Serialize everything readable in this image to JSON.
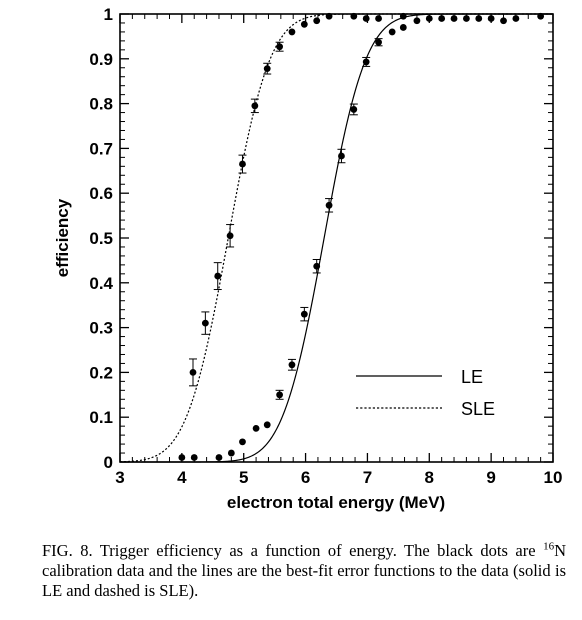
{
  "chart_data": {
    "type": "scatter",
    "xlabel": "electron total energy (MeV)",
    "ylabel": "efficiency",
    "xlim": [
      3,
      10
    ],
    "ylim": [
      0,
      1
    ],
    "x_ticks": [
      "3",
      "4",
      "5",
      "6",
      "7",
      "8",
      "9",
      "10"
    ],
    "y_ticks": [
      "0",
      "0.1",
      "0.2",
      "0.3",
      "0.4",
      "0.5",
      "0.6",
      "0.7",
      "0.8",
      "0.9",
      "1"
    ],
    "grid": false,
    "legend_position": "bottom-right",
    "series": [
      {
        "name": "LE",
        "line_style": "solid",
        "fit": {
          "type": "erf",
          "mean": 6.3,
          "sigma": 0.53
        },
        "points": [
          {
            "x": 4.0,
            "y": 0.01
          },
          {
            "x": 4.2,
            "y": 0.01
          },
          {
            "x": 4.6,
            "y": 0.01
          },
          {
            "x": 4.8,
            "y": 0.02
          },
          {
            "x": 4.98,
            "y": 0.045
          },
          {
            "x": 5.2,
            "y": 0.075
          },
          {
            "x": 5.38,
            "y": 0.083
          },
          {
            "x": 5.58,
            "y": 0.15
          },
          {
            "x": 5.78,
            "y": 0.217
          },
          {
            "x": 5.98,
            "y": 0.33
          },
          {
            "x": 6.18,
            "y": 0.437
          },
          {
            "x": 6.38,
            "y": 0.573
          },
          {
            "x": 6.58,
            "y": 0.683
          },
          {
            "x": 6.78,
            "y": 0.787
          },
          {
            "x": 6.98,
            "y": 0.893
          },
          {
            "x": 7.18,
            "y": 0.937
          },
          {
            "x": 7.4,
            "y": 0.96
          },
          {
            "x": 7.58,
            "y": 0.97
          },
          {
            "x": 7.8,
            "y": 0.985
          },
          {
            "x": 8.0,
            "y": 0.99
          },
          {
            "x": 8.2,
            "y": 0.99
          },
          {
            "x": 8.4,
            "y": 0.99
          },
          {
            "x": 8.6,
            "y": 0.99
          },
          {
            "x": 8.8,
            "y": 0.99
          },
          {
            "x": 9.0,
            "y": 0.99
          },
          {
            "x": 9.2,
            "y": 0.985
          },
          {
            "x": 9.4,
            "y": 0.99
          },
          {
            "x": 9.8,
            "y": 0.995
          }
        ]
      },
      {
        "name": "SLE",
        "line_style": "dashed",
        "fit": {
          "type": "erf",
          "mean": 4.75,
          "sigma": 0.53
        },
        "points": [
          {
            "x": 4.18,
            "y": 0.2
          },
          {
            "x": 4.38,
            "y": 0.31
          },
          {
            "x": 4.58,
            "y": 0.415
          },
          {
            "x": 4.78,
            "y": 0.505
          },
          {
            "x": 4.98,
            "y": 0.665
          },
          {
            "x": 5.18,
            "y": 0.795
          },
          {
            "x": 5.38,
            "y": 0.878
          },
          {
            "x": 5.58,
            "y": 0.927
          },
          {
            "x": 5.78,
            "y": 0.96
          },
          {
            "x": 5.98,
            "y": 0.977
          },
          {
            "x": 6.18,
            "y": 0.985
          },
          {
            "x": 6.38,
            "y": 0.995
          },
          {
            "x": 6.78,
            "y": 0.995
          },
          {
            "x": 6.98,
            "y": 0.99
          },
          {
            "x": 7.18,
            "y": 0.99
          },
          {
            "x": 7.58,
            "y": 0.995
          }
        ]
      }
    ],
    "error_bars": [
      {
        "x": 4.18,
        "y": 0.2,
        "err": 0.03
      },
      {
        "x": 4.38,
        "y": 0.31,
        "err": 0.025
      },
      {
        "x": 4.58,
        "y": 0.415,
        "err": 0.03
      },
      {
        "x": 4.78,
        "y": 0.505,
        "err": 0.025
      },
      {
        "x": 4.98,
        "y": 0.665,
        "err": 0.02
      },
      {
        "x": 5.18,
        "y": 0.795,
        "err": 0.015
      },
      {
        "x": 5.38,
        "y": 0.878,
        "err": 0.012
      },
      {
        "x": 5.58,
        "y": 0.927,
        "err": 0.01
      },
      {
        "x": 5.98,
        "y": 0.33,
        "err": 0.015
      },
      {
        "x": 6.18,
        "y": 0.437,
        "err": 0.015
      },
      {
        "x": 6.38,
        "y": 0.573,
        "err": 0.015
      },
      {
        "x": 6.58,
        "y": 0.683,
        "err": 0.015
      },
      {
        "x": 6.78,
        "y": 0.787,
        "err": 0.012
      },
      {
        "x": 6.98,
        "y": 0.893,
        "err": 0.01
      },
      {
        "x": 7.18,
        "y": 0.937,
        "err": 0.008
      },
      {
        "x": 5.78,
        "y": 0.217,
        "err": 0.012
      },
      {
        "x": 5.58,
        "y": 0.15,
        "err": 0.01
      }
    ]
  },
  "legend": {
    "le_label": "LE",
    "sle_label": "SLE"
  },
  "caption": {
    "prefix": "FIG. 8.   Trigger efficiency as a function of energy. The black dots are ",
    "superscript": "16",
    "suffix": "N calibration data and the lines are the best-fit error functions to the data (solid is LE and dashed is SLE)."
  }
}
